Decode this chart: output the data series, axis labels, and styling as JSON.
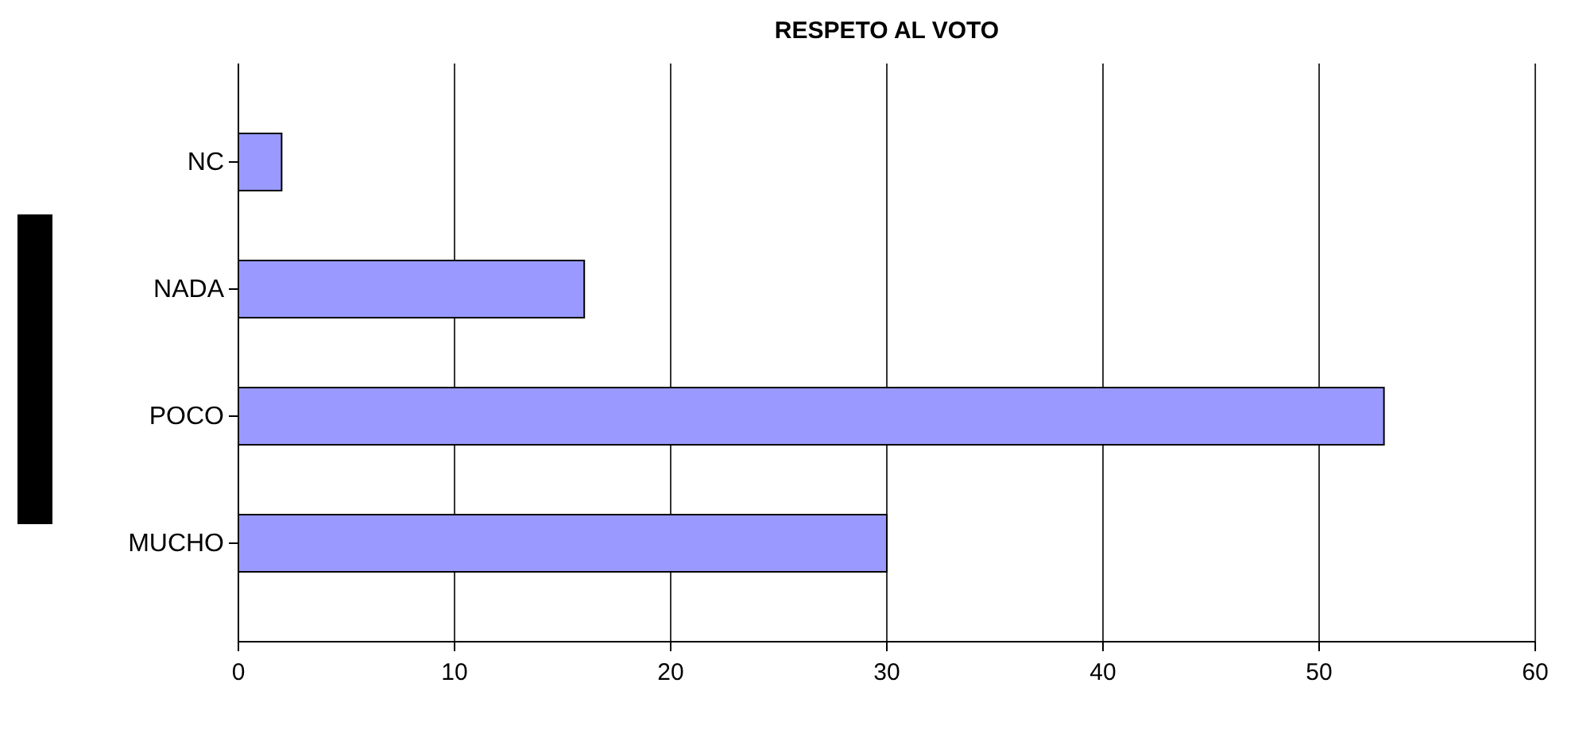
{
  "chart_data": {
    "type": "bar",
    "orientation": "horizontal",
    "title": "RESPETO AL VOTO",
    "categories": [
      "NC",
      "NADA",
      "POCO",
      "MUCHO"
    ],
    "values": [
      2,
      16,
      53,
      30
    ],
    "color": "#9999ff",
    "xlim": [
      0,
      60
    ],
    "xticks": [
      0,
      10,
      20,
      30,
      40,
      50,
      60
    ],
    "grid": "x"
  }
}
